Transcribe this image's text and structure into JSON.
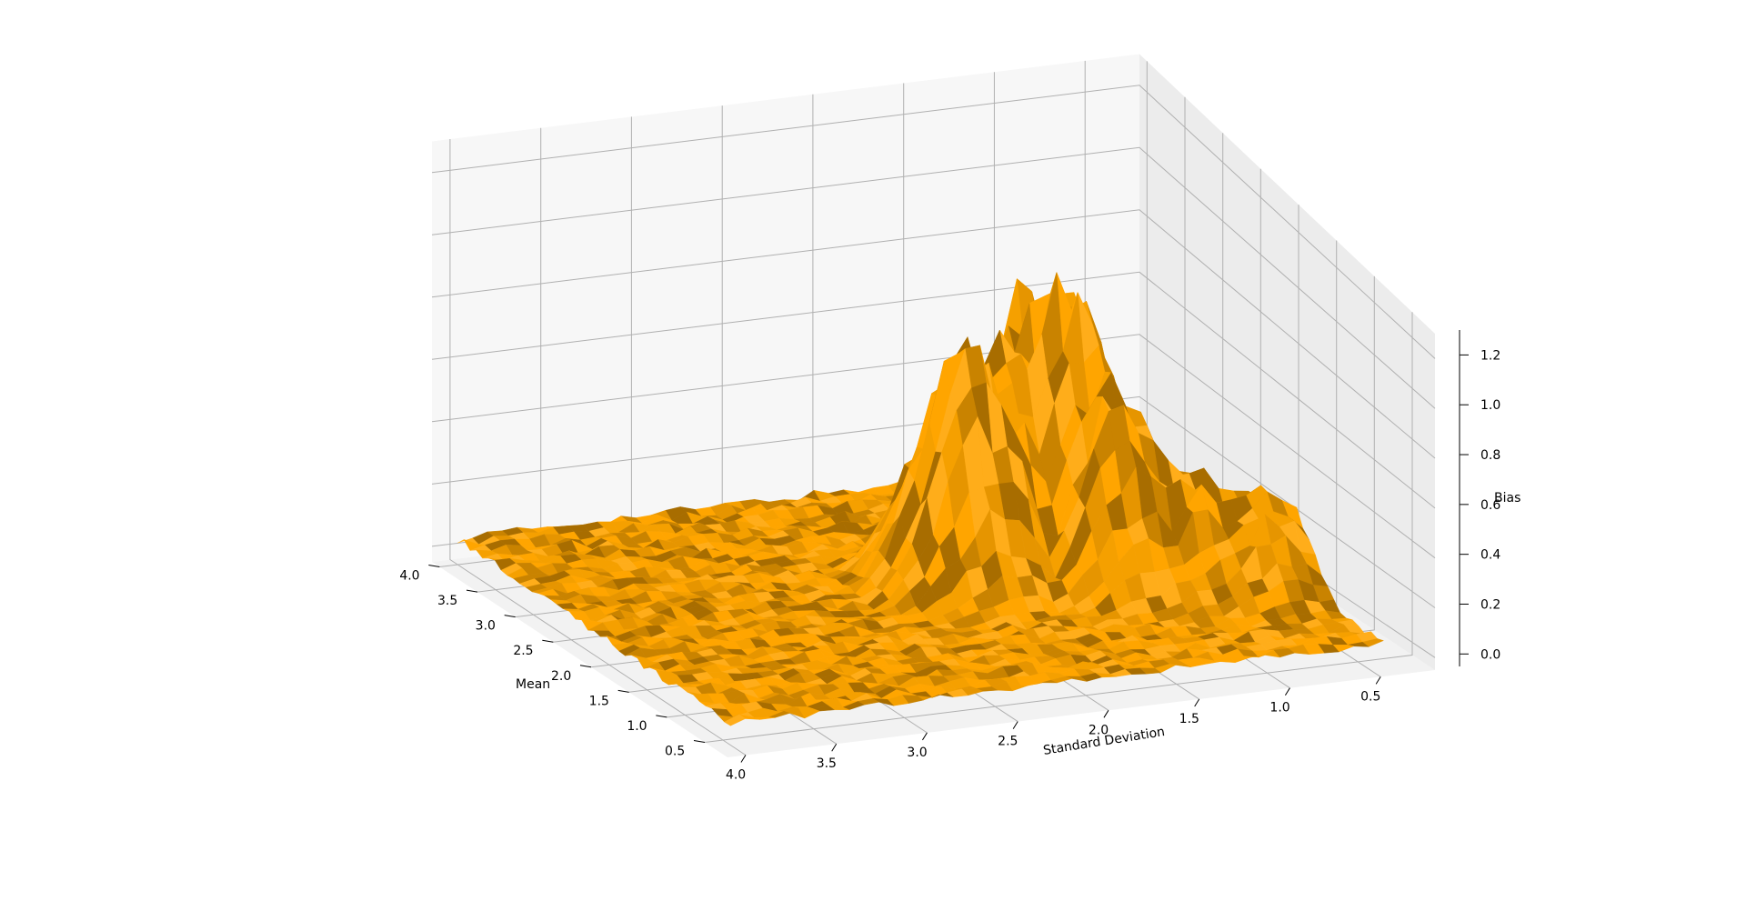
{
  "chart_data": {
    "type": "surface",
    "title": "",
    "xlabel": "Standard Deviation",
    "ylabel": "Mean",
    "zlabel": "Bias",
    "x_ticks": [
      "4.0",
      "3.5",
      "3.0",
      "2.5",
      "2.0",
      "1.5",
      "1.0",
      "0.5"
    ],
    "y_ticks": [
      "4.0",
      "3.5",
      "3.0",
      "2.5",
      "2.0",
      "1.5",
      "1.0",
      "0.5"
    ],
    "z_ticks": [
      "0.0",
      "0.2",
      "0.4",
      "0.6",
      "0.8",
      "1.0",
      "1.2"
    ],
    "xlim": [
      0.2,
      4.1
    ],
    "ylim": [
      0.2,
      4.1
    ],
    "zlim": [
      -0.05,
      1.3
    ],
    "grid": true,
    "surface_color": "#ffa500",
    "surface_description_points": [
      {
        "std": 1.3,
        "mean": 2.4,
        "bias": 1.18
      },
      {
        "std": 1.4,
        "mean": 2.6,
        "bias": 1.05
      },
      {
        "std": 1.6,
        "mean": 2.5,
        "bias": 0.95
      },
      {
        "std": 1.9,
        "mean": 2.3,
        "bias": 0.97
      },
      {
        "std": 1.2,
        "mean": 2.0,
        "bias": 0.8
      },
      {
        "std": 0.9,
        "mean": 1.8,
        "bias": 0.5
      },
      {
        "std": 0.6,
        "mean": 1.6,
        "bias": 0.45
      },
      {
        "std": 4.0,
        "mean": 4.0,
        "bias": 0.03
      },
      {
        "std": 0.5,
        "mean": 0.5,
        "bias": 0.01
      }
    ]
  },
  "axes": {
    "x_title": "Standard Deviation",
    "y_title": "Mean",
    "z_title": "Bias"
  }
}
